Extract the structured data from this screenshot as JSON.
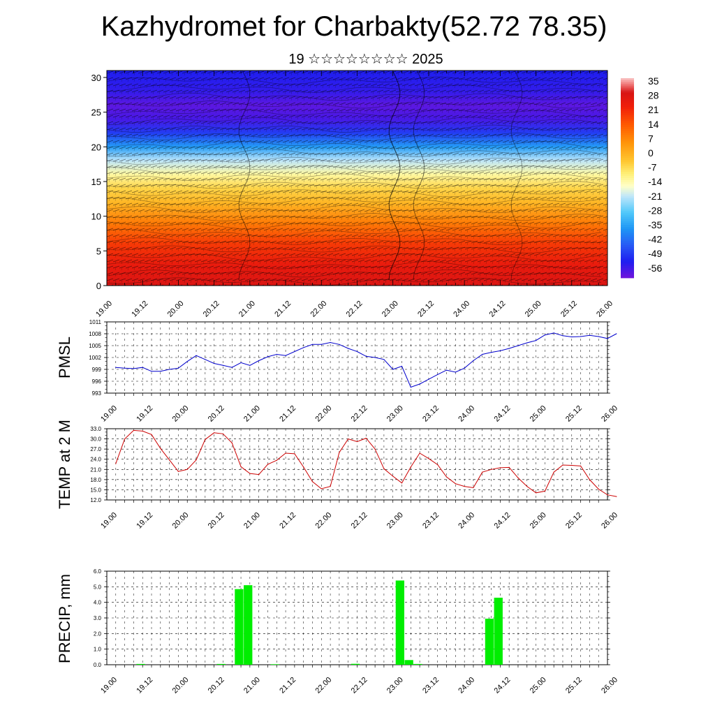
{
  "header": {
    "title": "Kazhydromet for Charbakty(52.72 78.35)",
    "subtitle": "19 ☆☆☆☆☆☆☆☆ 2025"
  },
  "chart_data": [
    {
      "id": "cross-section",
      "type": "heatmap",
      "title": "",
      "xlabel": "",
      "ylabel": "",
      "x_tick_labels": [
        "19.00",
        "19.12",
        "20.00",
        "20.12",
        "21.00",
        "21.12",
        "22.00",
        "22.12",
        "23.00",
        "23.12",
        "24.00",
        "24.12",
        "25.00",
        "25.12",
        "26.00"
      ],
      "y_ticks": [
        0,
        5,
        10,
        15,
        20,
        25,
        30
      ],
      "ylim": [
        0,
        31
      ],
      "colorbar": {
        "labels": [
          "35",
          "28",
          "21",
          "14",
          "7",
          "0",
          "-7",
          "-14",
          "-21",
          "-28",
          "-35",
          "-42",
          "-49",
          "-56"
        ],
        "range": [
          -60,
          38
        ]
      },
      "profile": {
        "heights": [
          0,
          3,
          6,
          9,
          12,
          14,
          16,
          18,
          20,
          22,
          24,
          26,
          28,
          31
        ],
        "temps": [
          30,
          26,
          20,
          10,
          0,
          -5,
          -12,
          -20,
          -35,
          -48,
          -56,
          -58,
          -54,
          -52
        ]
      }
    },
    {
      "id": "pmsl",
      "type": "line",
      "ylabel": "PMSL",
      "x_tick_labels": [
        "19.00",
        "19.12",
        "20.00",
        "20.12",
        "21.00",
        "21.12",
        "22.00",
        "22.12",
        "23.00",
        "23.12",
        "24.00",
        "24.12",
        "25.00",
        "25.12",
        "26.00"
      ],
      "y_tick_labels": [
        "1011",
        "1008",
        "1005",
        "1002",
        "999",
        "996",
        "993"
      ],
      "ylim": [
        993,
        1011
      ],
      "x": [
        0,
        3,
        6,
        9,
        12,
        15,
        18,
        21,
        24,
        27,
        30,
        33,
        36,
        39,
        42,
        45,
        48,
        51,
        54,
        57,
        60,
        63,
        66,
        69,
        72,
        75,
        78,
        81,
        84,
        87,
        90,
        93,
        96,
        99,
        102,
        105,
        108,
        111,
        114,
        117,
        120,
        123,
        126,
        129,
        132,
        135,
        138,
        141,
        144,
        147,
        150,
        153,
        156,
        159,
        162,
        165,
        168
      ],
      "values": [
        999.5,
        999.3,
        999.2,
        999.5,
        998.5,
        998.5,
        999.0,
        999.3,
        1001.0,
        1002.5,
        1001.5,
        1000.5,
        1000.0,
        999.5,
        1000.7,
        1000.0,
        1001.2,
        1002.2,
        1002.8,
        1002.5,
        1003.5,
        1004.5,
        1005.3,
        1005.3,
        1005.8,
        1005.3,
        1004.3,
        1003.5,
        1002.3,
        1002.0,
        1001.5,
        999.0,
        999.8,
        994.5,
        995.3,
        996.5,
        997.7,
        998.8,
        998.3,
        999.3,
        1001.2,
        1002.8,
        1003.3,
        1003.7,
        1004.3,
        1005.0,
        1005.7,
        1006.3,
        1007.7,
        1008.2,
        1007.5,
        1007.2,
        1007.3,
        1007.6,
        1007.3,
        1006.8,
        1008.0
      ],
      "color": "#0000cc"
    },
    {
      "id": "temp2m",
      "type": "line",
      "ylabel": "TEMP at 2 M",
      "x_tick_labels": [
        "19.00",
        "19.12",
        "20.00",
        "20.12",
        "21.00",
        "21.12",
        "22.00",
        "22.12",
        "23.00",
        "23.12",
        "24.00",
        "24.12",
        "25.00",
        "25.12",
        "26.00"
      ],
      "y_tick_labels": [
        "33.0",
        "30.0",
        "27.0",
        "24.0",
        "21.0",
        "18.0",
        "15.0",
        "12.0"
      ],
      "ylim": [
        12,
        33
      ],
      "x": [
        0,
        3,
        6,
        9,
        12,
        15,
        18,
        21,
        24,
        27,
        30,
        33,
        36,
        39,
        42,
        45,
        48,
        51,
        54,
        57,
        60,
        63,
        66,
        69,
        72,
        75,
        78,
        81,
        84,
        87,
        90,
        93,
        96,
        99,
        102,
        105,
        108,
        111,
        114,
        117,
        120,
        123,
        126,
        129,
        132,
        135,
        138,
        141,
        144,
        147,
        150,
        153,
        156,
        159,
        162,
        165,
        168
      ],
      "values": [
        22.7,
        30.0,
        32.5,
        32.3,
        31.3,
        27.2,
        23.8,
        20.4,
        21.0,
        23.8,
        29.8,
        31.8,
        31.5,
        28.8,
        21.8,
        19.8,
        19.5,
        22.5,
        23.7,
        25.8,
        25.6,
        21.7,
        17.4,
        15.3,
        16.0,
        26.0,
        30.0,
        29.2,
        30.2,
        27.0,
        21.2,
        19.0,
        17.0,
        21.7,
        25.8,
        24.2,
        22.4,
        18.8,
        16.8,
        16.0,
        15.6,
        20.2,
        21.0,
        21.5,
        21.6,
        18.5,
        16.0,
        14.1,
        14.6,
        20.2,
        22.3,
        22.2,
        22.0,
        18.0,
        15.2,
        13.5,
        13.0
      ],
      "color": "#cc0000"
    },
    {
      "id": "precip",
      "type": "bar",
      "ylabel": "PRECIP, mm",
      "x_tick_labels": [
        "19.00",
        "19.12",
        "20.00",
        "20.12",
        "21.00",
        "21.12",
        "22.00",
        "22.12",
        "23.00",
        "23.12",
        "24.00",
        "24.12",
        "25.00",
        "25.12",
        "26.00"
      ],
      "y_tick_labels": [
        "6.0",
        "5.0",
        "4.0",
        "3.0",
        "2.0",
        "1.0",
        "0.0"
      ],
      "ylim": [
        0,
        6
      ],
      "bar_width_hours": 3,
      "bars": [
        {
          "x": 9,
          "value": 0.05
        },
        {
          "x": 36,
          "value": 0.05
        },
        {
          "x": 42,
          "value": 4.85
        },
        {
          "x": 45,
          "value": 5.1
        },
        {
          "x": 54,
          "value": 0.03
        },
        {
          "x": 81,
          "value": 0.06
        },
        {
          "x": 96,
          "value": 5.4
        },
        {
          "x": 99,
          "value": 0.3
        },
        {
          "x": 102,
          "value": 0.05
        },
        {
          "x": 126,
          "value": 2.95
        },
        {
          "x": 129,
          "value": 4.3
        }
      ],
      "color": "#00ee00"
    }
  ]
}
